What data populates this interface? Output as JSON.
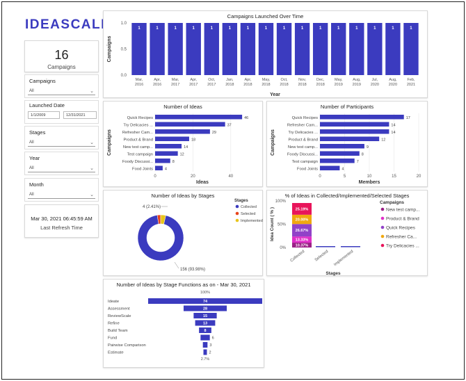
{
  "brand": {
    "logo_text": "IDEASCALE",
    "accent": "#3b3bbf"
  },
  "kpi": {
    "value": "16",
    "label": "Campaigns"
  },
  "filters": {
    "campaigns": {
      "label": "Campaigns",
      "value": "All"
    },
    "launched_date": {
      "label": "Launched Date",
      "start": "1/1/2009",
      "end": "12/31/2021"
    },
    "stages": {
      "label": "Stages",
      "value": "All"
    },
    "year": {
      "label": "Year",
      "value": "All"
    },
    "month": {
      "label": "Month",
      "value": "All"
    }
  },
  "refresh": {
    "timestamp": "Mar 30, 2021 06:45:59 AM",
    "label": "Last Refresh Time"
  },
  "chart_data": [
    {
      "id": "campaigns_over_time",
      "type": "bar",
      "title": "Campaigns Launched Over Time",
      "xlabel": "Year",
      "ylabel": "Campaigns",
      "categories": [
        "Mar, 2016",
        "Apr, 2016",
        "Mar, 2017",
        "Apr, 2017",
        "Oct, 2017",
        "Jan, 2018",
        "Apr, 2018",
        "May, 2018",
        "Oct, 2018",
        "Nov, 2018",
        "Dec, 2018",
        "May, 2019",
        "Aug, 2019",
        "Jul, 2020",
        "Aug, 2020",
        "Feb, 2021"
      ],
      "values": [
        1,
        1,
        1,
        1,
        1,
        1,
        1,
        1,
        1,
        1,
        1,
        1,
        1,
        1,
        1,
        1
      ],
      "yticks": [
        "1.0",
        "0.5",
        "0.0"
      ],
      "ylim": [
        0,
        1
      ]
    },
    {
      "id": "ideas",
      "type": "bar",
      "orientation": "horizontal",
      "title": "Number of Ideas",
      "xlabel": "Ideas",
      "ylabel": "Campaigns",
      "categories": [
        "Quick Recipes",
        "Try Delicacies ...",
        "Refresher Cam...",
        "Product & Brand",
        "New test camp...",
        "Test campaign",
        "Foody Discussi...",
        "Food Joints"
      ],
      "values": [
        46,
        37,
        29,
        18,
        14,
        12,
        8,
        4
      ],
      "xticks": [
        "0",
        "20",
        "40"
      ],
      "xlim": [
        0,
        50
      ]
    },
    {
      "id": "participants",
      "type": "bar",
      "orientation": "horizontal",
      "title": "Number of Participants",
      "xlabel": "Members",
      "ylabel": "Campaigns",
      "categories": [
        "Quick Recipes",
        "Refresher Cam...",
        "Try Delicacies ...",
        "Product & Brand",
        "New test camp...",
        "Foody Discussi...",
        "Test campaign",
        "Food Joints"
      ],
      "values": [
        17,
        14,
        14,
        12,
        9,
        8,
        7,
        4
      ],
      "xticks": [
        "0",
        "5",
        "10",
        "15",
        "20"
      ],
      "xlim": [
        0,
        20
      ]
    },
    {
      "id": "stages_donut",
      "type": "pie",
      "title": "Number of Ideas by Stages",
      "legend_title": "Stages",
      "labels": [
        "Collected",
        "Selected",
        "Implemented"
      ],
      "values": [
        156,
        4,
        6
      ],
      "colors": [
        "#3b3bbf",
        "#e8441c",
        "#e8c51c"
      ],
      "annotations": [
        "4 (2.41%)",
        "156 (93.98%)"
      ]
    },
    {
      "id": "pct_stages",
      "type": "bar",
      "stacked": true,
      "title": "% of Ideas in Collected/Implemented/Selected Stages",
      "xlabel": "Stages",
      "ylabel": "Idea Count ( % )",
      "categories": [
        "Collected",
        "Selected",
        "Implemented"
      ],
      "yticks": [
        "100%",
        "50%",
        "0%"
      ],
      "legend_title": "Campaigns",
      "series": [
        {
          "name": "New test camp...",
          "values": [
            10.37,
            0,
            0
          ],
          "label": "10.37%",
          "color": "#9b1f86"
        },
        {
          "name": "Product & Brand",
          "values": [
            13.33,
            0,
            0
          ],
          "label": "13.33%",
          "color": "#e02fc8"
        },
        {
          "name": "Quick Recipes",
          "values": [
            26.67,
            0,
            0
          ],
          "label": "26.67%",
          "color": "#9142c8"
        },
        {
          "name": "Refresher Ca...",
          "values": [
            20.0,
            0,
            0
          ],
          "label": "20.00%",
          "color": "#f0a80f"
        },
        {
          "name": "Try Delicacies ...",
          "values": [
            25.19,
            0,
            0
          ],
          "label": "25.19%",
          "color": "#e8145a"
        }
      ],
      "thin_bar_color": "#3b3bbf"
    },
    {
      "id": "funnel",
      "type": "bar",
      "subtype": "funnel",
      "title": "Number of Ideas by Stage Functions as on - Mar 30, 2021",
      "top_label": "100%",
      "bottom_label": "2.7%",
      "categories": [
        "Ideate",
        "Assessment",
        "ReviewScale",
        "Refine",
        "Build Team",
        "Fund",
        "Pairwise Comparison",
        "Estimate"
      ],
      "values": [
        74,
        28,
        15,
        13,
        8,
        6,
        3,
        2
      ]
    }
  ]
}
